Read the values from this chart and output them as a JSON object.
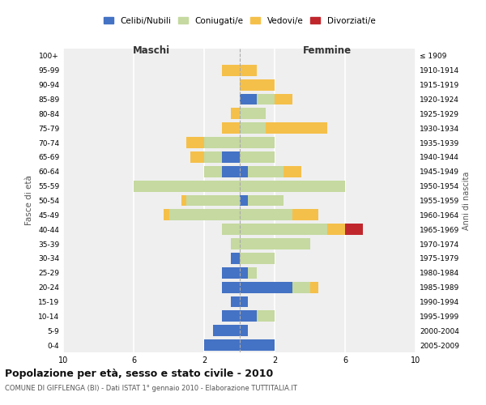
{
  "age_groups_display": [
    "100+",
    "95-99",
    "90-94",
    "85-89",
    "80-84",
    "75-79",
    "70-74",
    "65-69",
    "60-64",
    "55-59",
    "50-54",
    "45-49",
    "40-44",
    "35-39",
    "30-34",
    "25-29",
    "20-24",
    "15-19",
    "10-14",
    "5-9",
    "0-4"
  ],
  "birth_years_display": [
    "≤ 1909",
    "1910-1914",
    "1915-1919",
    "1920-1924",
    "1925-1929",
    "1930-1934",
    "1935-1939",
    "1940-1944",
    "1945-1949",
    "1950-1954",
    "1955-1959",
    "1960-1964",
    "1965-1969",
    "1970-1974",
    "1975-1979",
    "1980-1984",
    "1985-1989",
    "1990-1994",
    "1995-1999",
    "2000-2004",
    "2005-2009"
  ],
  "male": {
    "celibi": [
      2,
      1.5,
      1,
      0.5,
      1,
      1,
      0.5,
      0,
      0,
      0,
      0,
      0,
      1,
      1,
      0,
      0,
      0,
      0,
      0,
      0,
      0
    ],
    "coniugati": [
      0,
      0,
      0,
      0,
      0,
      0,
      0,
      0.5,
      1,
      4,
      3,
      6,
      1,
      1,
      2,
      0,
      0,
      0,
      0,
      0,
      0
    ],
    "vedovi": [
      0,
      0,
      0,
      0,
      0,
      0,
      0,
      0,
      0,
      0.3,
      0.3,
      0,
      0,
      0.8,
      1,
      1,
      0.5,
      0,
      0,
      1,
      0
    ],
    "divorziati": [
      0,
      0,
      0,
      0,
      0,
      0,
      0,
      0,
      0,
      0,
      0,
      0,
      0,
      0,
      0,
      0,
      0,
      0,
      0,
      0,
      0
    ]
  },
  "female": {
    "celibi": [
      2,
      0.5,
      1,
      0.5,
      3,
      0.5,
      0,
      0,
      0,
      0,
      0.5,
      0,
      0.5,
      0,
      0,
      0,
      0,
      1,
      0,
      0,
      0
    ],
    "coniugati": [
      0,
      0,
      1,
      0,
      1,
      0.5,
      2,
      4,
      5,
      3,
      2,
      6,
      2,
      2,
      2,
      1.5,
      1.5,
      1,
      0,
      0,
      0
    ],
    "vedovi": [
      0,
      0,
      0,
      0,
      0.5,
      0,
      0,
      0,
      1,
      1.5,
      0,
      0,
      1,
      0,
      0,
      3.5,
      0,
      1,
      2,
      1,
      0
    ],
    "divorziati": [
      0,
      0,
      0,
      0,
      0,
      0,
      0,
      0,
      1,
      0,
      0,
      0,
      0,
      0,
      0,
      0,
      0,
      0,
      0,
      0,
      0
    ]
  },
  "colors": {
    "celibi": "#4472c4",
    "coniugati": "#c5d9a0",
    "vedovi": "#f5c04a",
    "divorziati": "#c0272d"
  },
  "xlim": 10,
  "title": "Popolazione per età, sesso e stato civile - 2010",
  "subtitle": "COMUNE DI GIFFLENGA (BI) - Dati ISTAT 1° gennaio 2010 - Elaborazione TUTTITALIA.IT",
  "ylabel_left": "Fasce di età",
  "ylabel_right": "Anni di nascita",
  "xlabel_left": "Maschi",
  "xlabel_right": "Femmine",
  "legend_labels": [
    "Celibi/Nubili",
    "Coniugati/e",
    "Vedovi/e",
    "Divorziati/e"
  ],
  "background_color": "#efefef"
}
